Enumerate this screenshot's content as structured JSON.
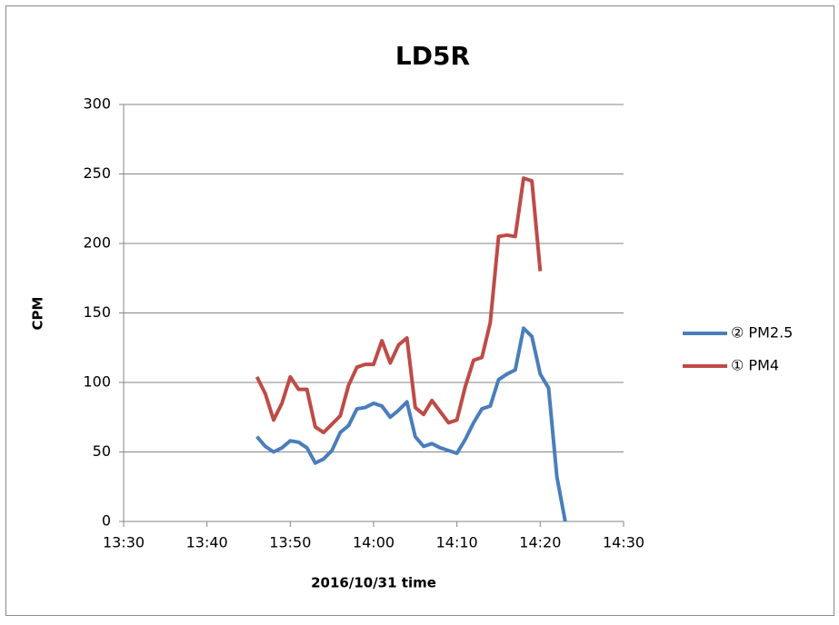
{
  "chart_data": {
    "type": "line",
    "title": "LD5R",
    "x_label": "2016/10/31 time",
    "y_label": "CPM",
    "x": [
      826,
      827,
      828,
      829,
      830,
      831,
      832,
      833,
      834,
      835,
      836,
      837,
      838,
      839,
      840,
      841,
      842,
      843,
      844,
      845,
      846,
      847,
      848,
      849,
      850,
      851,
      852,
      853,
      854,
      855,
      856,
      857,
      858,
      859,
      860,
      861,
      862,
      863
    ],
    "series": [
      {
        "name": "② PM2.5",
        "color": "#4a7ebb",
        "values": [
          61,
          54,
          50,
          53,
          58,
          57,
          53,
          42,
          45,
          51,
          64,
          69,
          81,
          82,
          85,
          83,
          75,
          80,
          86,
          61,
          54,
          56,
          53,
          51,
          49,
          59,
          71,
          81,
          83,
          102,
          106,
          109,
          139,
          133,
          106,
          96,
          32,
          0
        ]
      },
      {
        "name": "① PM4",
        "color": "#be4b48",
        "values": [
          104,
          92,
          73,
          85,
          104,
          95,
          95,
          68,
          64,
          70,
          76,
          98,
          111,
          113,
          113,
          130,
          114,
          127,
          132,
          82,
          77,
          87,
          79,
          71,
          73,
          97,
          116,
          118,
          143,
          205,
          206,
          205,
          247,
          245,
          180,
          null,
          null,
          null
        ]
      }
    ],
    "xlim": [
      810,
      870
    ],
    "xticks": [
      {
        "value": 810,
        "label": "13:30"
      },
      {
        "value": 820,
        "label": "13:40"
      },
      {
        "value": 830,
        "label": "13:50"
      },
      {
        "value": 840,
        "label": "14:00"
      },
      {
        "value": 850,
        "label": "14:10"
      },
      {
        "value": 860,
        "label": "14:20"
      },
      {
        "value": 870,
        "label": "14:30"
      }
    ],
    "ylim": [
      0,
      300
    ],
    "yticks": [
      0,
      50,
      100,
      150,
      200,
      250,
      300
    ],
    "grid": true,
    "legend": "right"
  }
}
